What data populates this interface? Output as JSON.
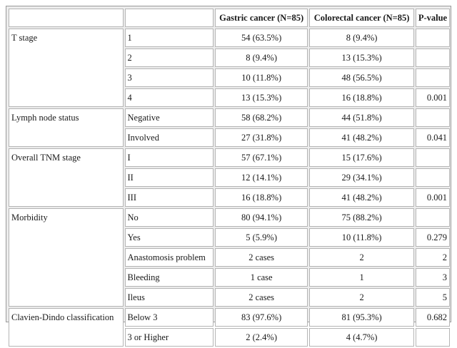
{
  "table": {
    "headers": [
      "",
      "",
      "Gastric cancer (N=85)",
      "Colorectal cancer (N=85)",
      "P-value"
    ],
    "groups": [
      {
        "label": "T stage",
        "rows": [
          {
            "sub": "1",
            "gastric": "54 (63.5%)",
            "colorectal": "8 (9.4%)",
            "p": ""
          },
          {
            "sub": "2",
            "gastric": "8 (9.4%)",
            "colorectal": "13 (15.3%)",
            "p": ""
          },
          {
            "sub": "3",
            "gastric": "10 (11.8%)",
            "colorectal": "48 (56.5%)",
            "p": ""
          },
          {
            "sub": "4",
            "gastric": "13 (15.3%)",
            "colorectal": "16 (18.8%)",
            "p": "0.001"
          }
        ]
      },
      {
        "label": "Lymph node status",
        "rows": [
          {
            "sub": "Negative",
            "gastric": "58 (68.2%)",
            "colorectal": "44 (51.8%)",
            "p": ""
          },
          {
            "sub": "Involved",
            "gastric": "27 (31.8%)",
            "colorectal": "41 (48.2%)",
            "p": "0.041"
          }
        ]
      },
      {
        "label": "Overall TNM stage",
        "rows": [
          {
            "sub": "I",
            "gastric": "57 (67.1%)",
            "colorectal": "15 (17.6%)",
            "p": ""
          },
          {
            "sub": "II",
            "gastric": "12 (14.1%)",
            "colorectal": "29 (34.1%)",
            "p": ""
          },
          {
            "sub": "III",
            "gastric": "16 (18.8%)",
            "colorectal": "41 (48.2%)",
            "p": "0.001"
          }
        ]
      },
      {
        "label": "Morbidity",
        "rows": [
          {
            "sub": "No",
            "gastric": "80 (94.1%)",
            "colorectal": "75 (88.2%)",
            "p": ""
          },
          {
            "sub": "Yes",
            "gastric": "5 (5.9%)",
            "colorectal": "10 (11.8%)",
            "p": "0.279"
          },
          {
            "sub": "Anastomosis problem",
            "gastric": "2 cases",
            "colorectal": "2",
            "p": "2"
          },
          {
            "sub": "Bleeding",
            "gastric": "1 case",
            "colorectal": "1",
            "p": "3"
          },
          {
            "sub": "Ileus",
            "gastric": "2 cases",
            "colorectal": "2",
            "p": "5"
          }
        ]
      },
      {
        "label": "Clavien-Dindo classification",
        "rows": [
          {
            "sub": "Below 3",
            "gastric": "83 (97.6%)",
            "colorectal": "81 (95.3%)",
            "p": "0.682"
          },
          {
            "sub": "3 or Higher",
            "gastric": "2 (2.4%)",
            "colorectal": "4 (4.7%)",
            "p": ""
          }
        ]
      }
    ]
  }
}
